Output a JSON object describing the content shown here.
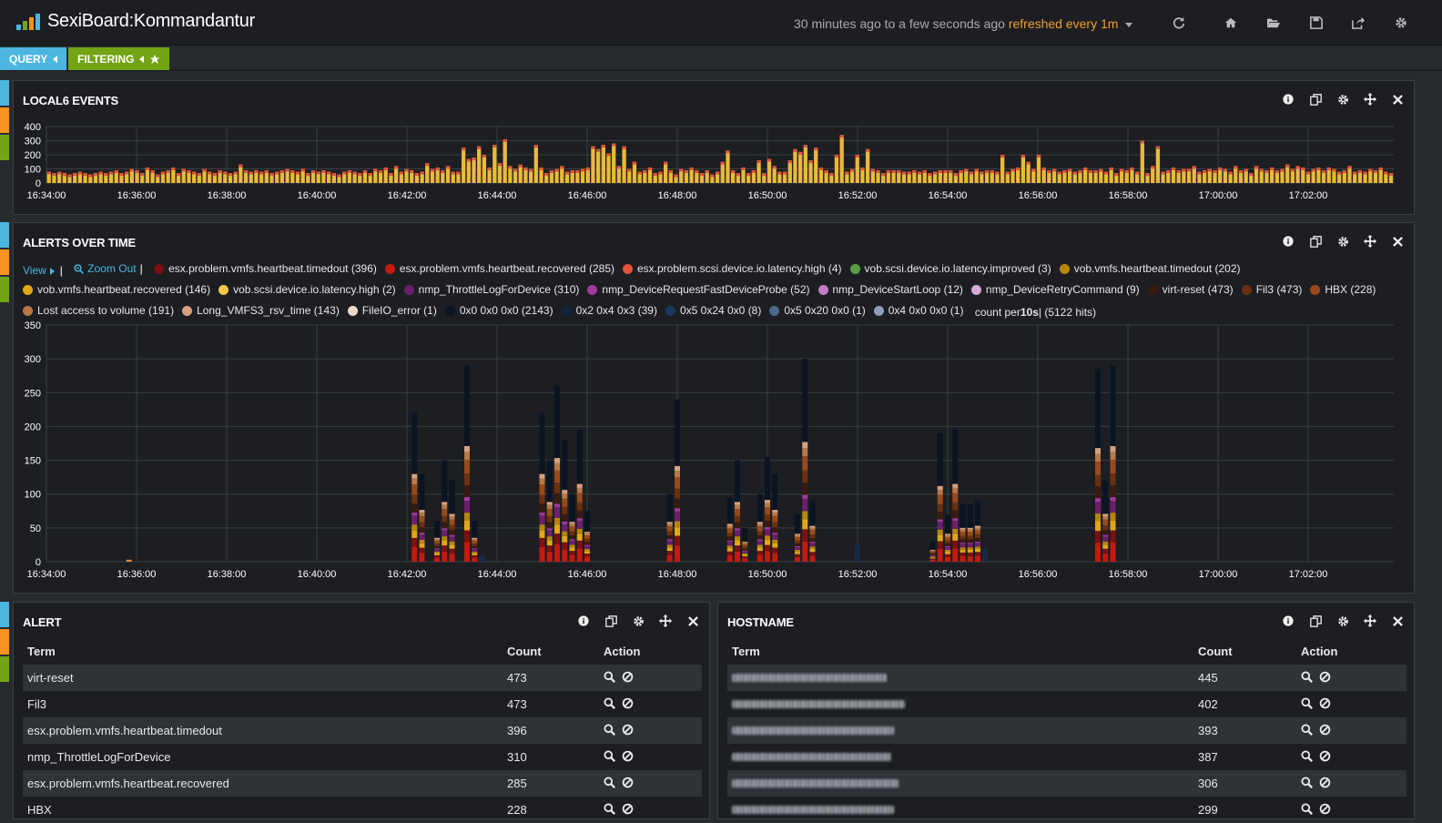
{
  "header": {
    "title": "SexiBoard:Kommandantur",
    "timespan": "30 minutes ago to a few seconds ago",
    "refresh": "refreshed every 1m",
    "icons": [
      "refresh-icon",
      "home-icon",
      "folder-open-icon",
      "save-icon",
      "share-icon",
      "gear-icon"
    ]
  },
  "pills": {
    "query": "QUERY",
    "filtering": "FILTERING"
  },
  "colors": {
    "query_blue": "#4cb6e0",
    "filter_orange": "#f7931e",
    "filter_green": "#72a415",
    "accent_orange": "#f0a030",
    "bar_yellow": "#ebb93a"
  },
  "events_panel": {
    "title": "LOCAL6 EVENTS"
  },
  "alerts_panel": {
    "title": "ALERTS OVER TIME",
    "view": "View",
    "zoom_out": "Zoom Out",
    "legend": [
      {
        "label": "esx.problem.vmfs.heartbeat.timedout (396)",
        "color": "#7a1010"
      },
      {
        "label": "esx.problem.vmfs.heartbeat.recovered (285)",
        "color": "#c41a10"
      },
      {
        "label": "esx.problem.scsi.device.io.latency.high (4)",
        "color": "#e0533a"
      },
      {
        "label": "vob.scsi.device.io.latency.improved (3)",
        "color": "#5a9e46"
      },
      {
        "label": "vob.vmfs.heartbeat.timedout (202)",
        "color": "#b8860b"
      },
      {
        "label": "vob.vmfs.heartbeat.recovered (146)",
        "color": "#e0a818"
      },
      {
        "label": "vob.scsi.device.io.latency.high (2)",
        "color": "#f2c744"
      },
      {
        "label": "nmp_ThrottleLogForDevice (310)",
        "color": "#6b1f6b"
      },
      {
        "label": "nmp_DeviceRequestFastDeviceProbe (52)",
        "color": "#a03a9c"
      },
      {
        "label": "nmp_DeviceStartLoop (12)",
        "color": "#c77ac6"
      },
      {
        "label": "nmp_DeviceRetryCommand (9)",
        "color": "#d8a8d8"
      },
      {
        "label": "virt-reset (473)",
        "color": "#3a1a10"
      },
      {
        "label": "Fil3 (473)",
        "color": "#6b3010"
      },
      {
        "label": "HBX (228)",
        "color": "#9a4a1a"
      },
      {
        "label": "Lost access to volume (191)",
        "color": "#b87848"
      },
      {
        "label": "Long_VMFS3_rsv_time (143)",
        "color": "#d8a080"
      },
      {
        "label": "FileIO_error (1)",
        "color": "#f0d8c8"
      },
      {
        "label": "0x0 0x0 0x0 (2143)",
        "color": "#0a1422"
      },
      {
        "label": "0x2 0x4 0x3 (39)",
        "color": "#10243c"
      },
      {
        "label": "0x5 0x24 0x0 (8)",
        "color": "#1a3a5e"
      },
      {
        "label": "0x5 0x20 0x0 (1)",
        "color": "#4a6a8e"
      },
      {
        "label": "0x4 0x0 0x0 (1)",
        "color": "#8aa0b8"
      }
    ],
    "count_text": "count per ",
    "count_interval": "10s",
    "count_hits": " | (5122 hits)"
  },
  "chart_data": [
    {
      "type": "bar",
      "title": "LOCAL6 EVENTS",
      "ylim": [
        0,
        400
      ],
      "y_ticks": [
        "0",
        "100",
        "200",
        "300",
        "400"
      ],
      "x_ticks": [
        "16:34:00",
        "16:36:00",
        "16:38:00",
        "16:40:00",
        "16:42:00",
        "16:44:00",
        "16:46:00",
        "16:48:00",
        "16:50:00",
        "16:52:00",
        "16:54:00",
        "16:56:00",
        "16:58:00",
        "17:00:00",
        "17:02:00"
      ],
      "values": [
        80,
        70,
        80,
        70,
        60,
        70,
        80,
        70,
        60,
        70,
        80,
        70,
        80,
        90,
        70,
        80,
        100,
        90,
        70,
        110,
        90,
        60,
        80,
        90,
        110,
        70,
        100,
        90,
        80,
        70,
        100,
        80,
        70,
        90,
        80,
        70,
        80,
        130,
        90,
        80,
        90,
        80,
        90,
        70,
        80,
        90,
        100,
        90,
        80,
        100,
        70,
        90,
        80,
        90,
        80,
        70,
        60,
        80,
        90,
        80,
        70,
        90,
        70,
        100,
        90,
        110,
        70,
        120,
        80,
        100,
        90,
        70,
        80,
        140,
        100,
        110,
        90,
        120,
        80,
        80,
        250,
        170,
        180,
        260,
        200,
        110,
        270,
        140,
        310,
        120,
        100,
        130,
        110,
        100,
        270,
        110,
        70,
        90,
        100,
        120,
        80,
        90,
        90,
        100,
        110,
        260,
        240,
        270,
        210,
        280,
        120,
        260,
        100,
        150,
        80,
        90,
        110,
        70,
        80,
        150,
        90,
        60,
        100,
        90,
        110,
        90,
        70,
        90,
        60,
        80,
        150,
        230,
        90,
        70,
        110,
        70,
        90,
        160,
        70,
        170,
        120,
        80,
        80,
        160,
        240,
        220,
        270,
        160,
        250,
        110,
        90,
        70,
        200,
        340,
        80,
        100,
        200,
        110,
        240,
        100,
        90,
        70,
        90,
        90,
        90,
        80,
        80,
        90,
        80,
        90,
        70,
        80,
        90,
        90,
        90,
        70,
        90,
        100,
        80,
        100,
        80,
        90,
        90,
        80,
        200,
        80,
        100,
        110,
        200,
        150,
        100,
        200,
        110,
        90,
        100,
        80,
        90,
        100,
        80,
        90,
        110,
        90,
        90,
        100,
        80,
        110,
        70,
        100,
        90,
        110,
        80,
        300,
        70,
        120,
        260,
        80,
        90,
        110,
        90,
        100,
        100,
        120,
        80,
        90,
        100,
        90,
        110,
        100,
        80,
        120,
        90,
        100,
        70,
        120,
        100,
        90,
        110,
        90,
        100,
        130,
        100,
        120,
        110,
        80,
        100,
        110,
        90,
        110,
        100,
        80,
        90,
        120,
        80,
        90,
        80,
        100,
        90,
        110,
        80,
        70
      ]
    },
    {
      "type": "bar",
      "title": "ALERTS OVER TIME",
      "ylim": [
        0,
        350
      ],
      "y_ticks": [
        "0",
        "50",
        "100",
        "150",
        "200",
        "250",
        "300",
        "350"
      ],
      "x_ticks": [
        "16:34:00",
        "16:36:00",
        "16:38:00",
        "16:40:00",
        "16:42:00",
        "16:44:00",
        "16:46:00",
        "16:48:00",
        "16:50:00",
        "16:52:00",
        "16:54:00",
        "16:56:00",
        "16:58:00",
        "17:00:00",
        "17:02:00"
      ],
      "stacked": true,
      "bars": [
        {
          "x": "16:35:50",
          "total": 3
        },
        {
          "x": "16:42:10",
          "total": 220
        },
        {
          "x": "16:42:20",
          "total": 130
        },
        {
          "x": "16:42:40",
          "total": 60
        },
        {
          "x": "16:42:50",
          "total": 150
        },
        {
          "x": "16:43:00",
          "total": 120
        },
        {
          "x": "16:43:20",
          "total": 290
        },
        {
          "x": "16:43:30",
          "total": 60
        },
        {
          "x": "16:43:40",
          "total": 10
        },
        {
          "x": "16:45:00",
          "total": 220
        },
        {
          "x": "16:45:10",
          "total": 150
        },
        {
          "x": "16:45:20",
          "total": 260
        },
        {
          "x": "16:45:30",
          "total": 180
        },
        {
          "x": "16:45:40",
          "total": 100
        },
        {
          "x": "16:45:50",
          "total": 195
        },
        {
          "x": "16:46:00",
          "total": 75
        },
        {
          "x": "16:47:50",
          "total": 100
        },
        {
          "x": "16:48:00",
          "total": 240
        },
        {
          "x": "16:49:10",
          "total": 95
        },
        {
          "x": "16:49:20",
          "total": 150
        },
        {
          "x": "16:49:30",
          "total": 50
        },
        {
          "x": "16:49:50",
          "total": 100
        },
        {
          "x": "16:50:00",
          "total": 155
        },
        {
          "x": "16:50:10",
          "total": 130
        },
        {
          "x": "16:50:40",
          "total": 70
        },
        {
          "x": "16:50:50",
          "total": 300
        },
        {
          "x": "16:51:00",
          "total": 90
        },
        {
          "x": "16:52:00",
          "total": 25
        },
        {
          "x": "16:53:40",
          "total": 30
        },
        {
          "x": "16:53:50",
          "total": 190
        },
        {
          "x": "16:54:00",
          "total": 70
        },
        {
          "x": "16:54:10",
          "total": 195
        },
        {
          "x": "16:54:20",
          "total": 85
        },
        {
          "x": "16:54:30",
          "total": 85
        },
        {
          "x": "16:54:40",
          "total": 90
        },
        {
          "x": "16:54:50",
          "total": 20
        },
        {
          "x": "16:57:20",
          "total": 285
        },
        {
          "x": "16:57:30",
          "total": 120
        },
        {
          "x": "16:57:40",
          "total": 290
        }
      ]
    }
  ],
  "alert_panel": {
    "title": "ALERT",
    "columns": [
      "Term",
      "Count",
      "Action"
    ],
    "rows": [
      {
        "term": "virt-reset",
        "count": "473"
      },
      {
        "term": "Fil3",
        "count": "473"
      },
      {
        "term": "esx.problem.vmfs.heartbeat.timedout",
        "count": "396"
      },
      {
        "term": "nmp_ThrottleLogForDevice",
        "count": "310"
      },
      {
        "term": "esx.problem.vmfs.heartbeat.recovered",
        "count": "285"
      },
      {
        "term": "HBX",
        "count": "228"
      }
    ]
  },
  "hostname_panel": {
    "title": "HOSTNAME",
    "columns": [
      "Term",
      "Count",
      "Action"
    ],
    "rows": [
      {
        "count": "445"
      },
      {
        "count": "402"
      },
      {
        "count": "393"
      },
      {
        "count": "387"
      },
      {
        "count": "306"
      },
      {
        "count": "299"
      }
    ]
  }
}
